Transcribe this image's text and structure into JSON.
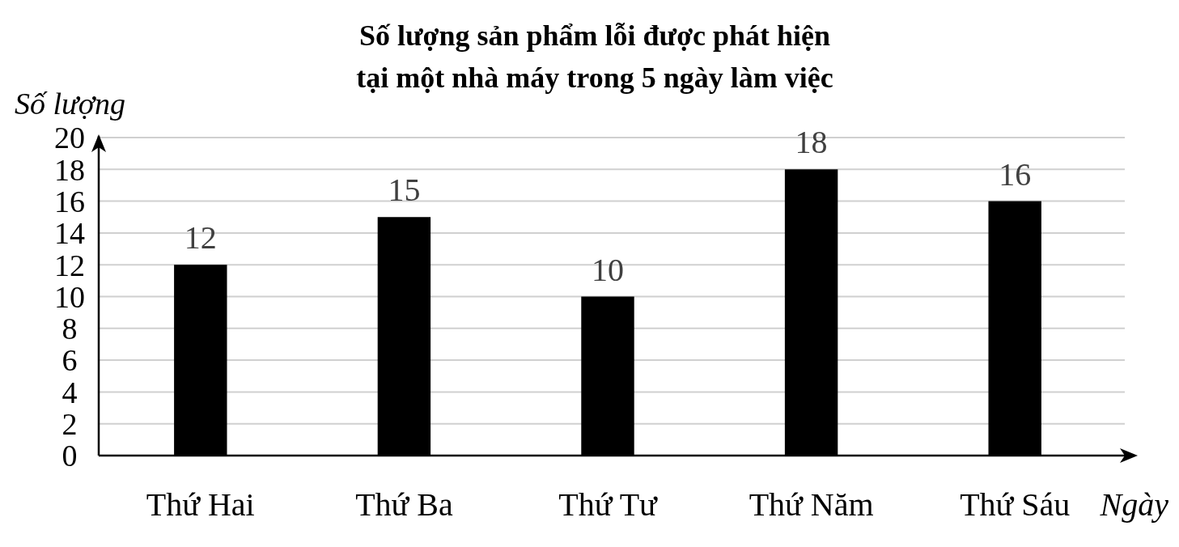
{
  "chart_data": {
    "type": "bar",
    "title": "Số lượng sản phẩm lỗi được phát hiện\ntại một nhà máy trong 5 ngày làm việc",
    "xlabel": "Ngày",
    "ylabel": "Số lượng",
    "categories": [
      "Thứ Hai",
      "Thứ Ba",
      "Thứ Tư",
      "Thứ Năm",
      "Thứ Sáu"
    ],
    "values": [
      12,
      15,
      10,
      18,
      16
    ],
    "color": "#000000",
    "ylim": [
      0,
      20
    ],
    "yticks": [
      0,
      2,
      4,
      6,
      8,
      10,
      12,
      14,
      16,
      18,
      20
    ],
    "grid": "y",
    "data_labels": true
  }
}
